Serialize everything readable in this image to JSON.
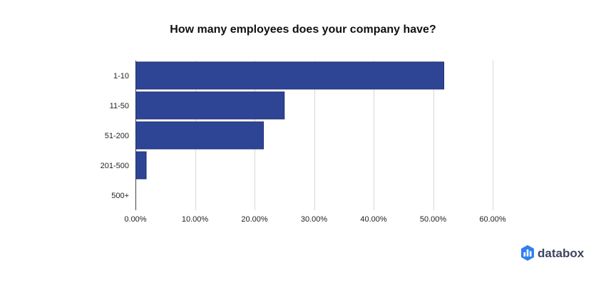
{
  "brand": {
    "name": "databox",
    "logo_icon": "databox-logo-icon"
  },
  "colors": {
    "bar": "#2e4596",
    "bar_border": "#1f2f6e",
    "grid": "#d7d7d7",
    "axis": "#444444"
  },
  "chart_data": {
    "type": "bar",
    "orientation": "horizontal",
    "title": "How many employees does your company have?",
    "xlabel": "",
    "ylabel": "",
    "categories": [
      "1-10",
      "11-50",
      "51-200",
      "201-500",
      "500+"
    ],
    "values": [
      51.8,
      25.0,
      21.5,
      1.8,
      0.0
    ],
    "xlim": [
      0,
      60
    ],
    "x_ticks": [
      0,
      10,
      20,
      30,
      40,
      50,
      60
    ],
    "x_tick_labels": [
      "0.00%",
      "10.00%",
      "20.00%",
      "30.00%",
      "40.00%",
      "50.00%",
      "60.00%"
    ],
    "grid": true,
    "legend": "none"
  }
}
